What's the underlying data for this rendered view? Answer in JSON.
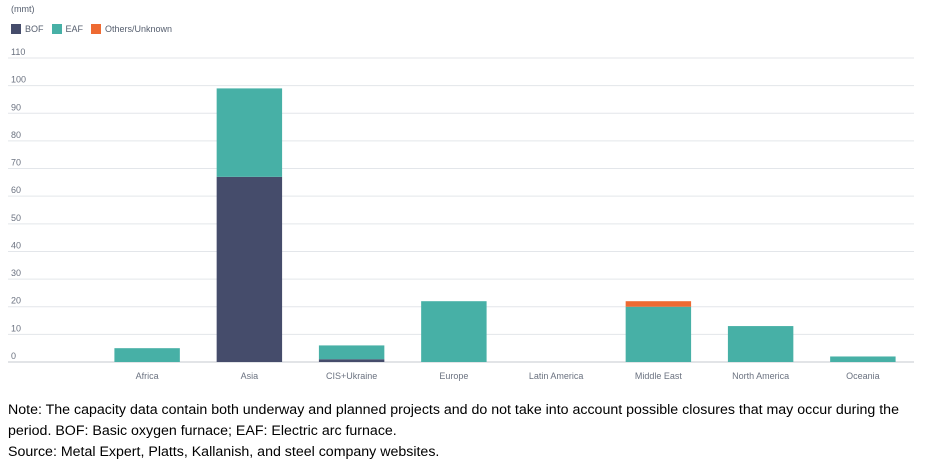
{
  "chart_data": {
    "type": "bar",
    "stacked": true,
    "unit_label": "(mmt)",
    "categories": [
      "Africa",
      "Asia",
      "CIS+Ukraine",
      "Europe",
      "Latin America",
      "Middle East",
      "North America",
      "Oceania"
    ],
    "series": [
      {
        "name": "BOF",
        "color": "#454c6b",
        "values": [
          0,
          67,
          1,
          0,
          0,
          0,
          0,
          0
        ]
      },
      {
        "name": "EAF",
        "color": "#47b0a6",
        "values": [
          5,
          32,
          5,
          22,
          0,
          20,
          13,
          2
        ]
      },
      {
        "name": "Others/Unknown",
        "color": "#ee6a32",
        "values": [
          0,
          0,
          0,
          0,
          0,
          2,
          0,
          0
        ]
      }
    ],
    "ylim": [
      0,
      110
    ],
    "yticks": [
      0,
      10,
      20,
      30,
      40,
      50,
      60,
      70,
      80,
      90,
      100,
      110
    ],
    "grid": true,
    "legend_position": "top-left",
    "title": "",
    "xlabel": "",
    "ylabel": ""
  },
  "footnotes": {
    "note": "Note: The capacity data contain both underway and planned projects and do not take into account possible closures that may occur during the period. BOF: Basic oxygen furnace; EAF: Electric arc furnace.",
    "source": "Source: Metal Expert, Platts, Kallanish, and steel company websites."
  }
}
